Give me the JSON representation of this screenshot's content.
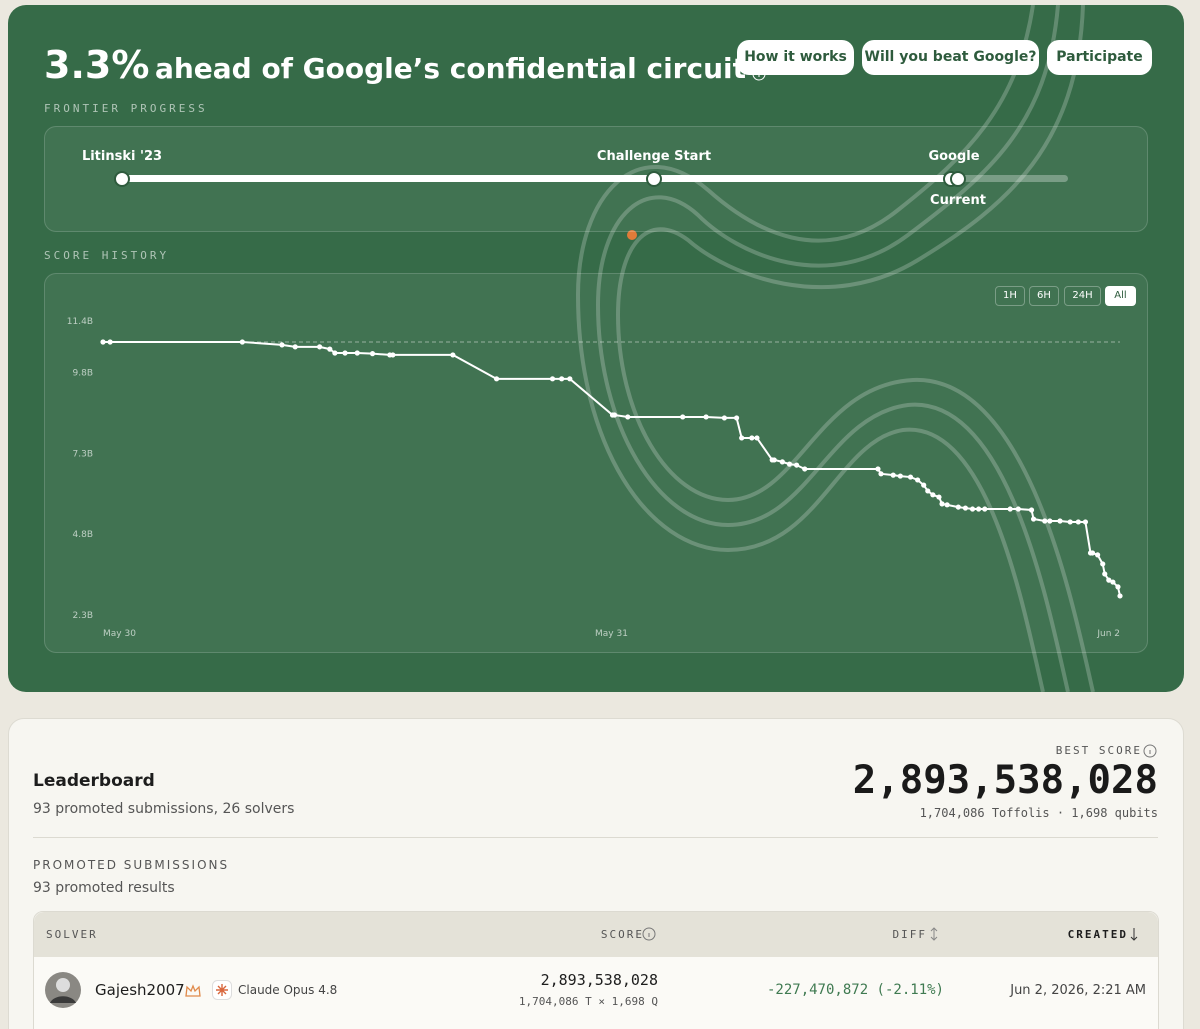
{
  "header": {
    "headline_value": "3.3%",
    "headline_text": "ahead of Google’s confidential circuit",
    "buttons": [
      "How it works",
      "Will you beat Google?",
      "Participate"
    ]
  },
  "frontier": {
    "label": "FRONTIER PROGRESS",
    "markers": [
      "Litinski '23",
      "Challenge Start",
      "Google"
    ],
    "current": "Current"
  },
  "score_history": {
    "label": "SCORE HISTORY",
    "ranges": [
      "1H",
      "6H",
      "24H",
      "All"
    ],
    "selected_range": 3
  },
  "chart_data": {
    "type": "line",
    "color": "#ffffff",
    "reference_line": 10.75,
    "x": [
      0,
      0.7,
      13.7,
      17.6,
      18.9,
      21.3,
      22.3,
      22.8,
      23.8,
      25,
      26.5,
      28.2,
      28.5,
      34.4,
      38.7,
      44.2,
      45.1,
      45.9,
      50.1,
      50.3,
      51.6,
      57,
      59.3,
      61.1,
      62.3,
      62.8,
      63.8,
      64.3,
      65.8,
      66,
      66.8,
      67.5,
      68.2,
      69,
      76.2,
      76.5,
      77.7,
      78.4,
      79.4,
      80.1,
      80.7,
      81.1,
      81.6,
      82.2,
      82.5,
      83,
      84.1,
      84.8,
      85.5,
      86.1,
      86.7,
      89.2,
      90,
      91.3,
      91.5,
      92.6,
      93.1,
      94.1,
      95.1,
      95.9,
      96.6,
      97.1,
      97.3,
      97.8,
      98.3,
      98.5,
      98.9,
      99.3,
      99.8,
      100
    ],
    "values": [
      10.75,
      10.75,
      10.75,
      10.66,
      10.6,
      10.6,
      10.53,
      10.41,
      10.41,
      10.41,
      10.39,
      10.35,
      10.35,
      10.35,
      9.61,
      9.61,
      9.61,
      9.61,
      8.49,
      8.49,
      8.43,
      8.43,
      8.43,
      8.4,
      8.4,
      7.78,
      7.78,
      7.78,
      7.1,
      7.1,
      7.04,
      6.97,
      6.94,
      6.82,
      6.82,
      6.67,
      6.63,
      6.6,
      6.57,
      6.48,
      6.32,
      6.14,
      6.02,
      5.95,
      5.74,
      5.71,
      5.64,
      5.61,
      5.58,
      5.58,
      5.58,
      5.58,
      5.58,
      5.55,
      5.27,
      5.21,
      5.21,
      5.21,
      5.18,
      5.18,
      5.18,
      4.22,
      4.22,
      4.16,
      3.88,
      3.57,
      3.38,
      3.32,
      3.17,
      2.89
    ],
    "xlim": [
      0,
      100
    ],
    "xticks": [
      {
        "value": 0,
        "label": "May 30"
      },
      {
        "value": 50,
        "label": "May 31"
      },
      {
        "value": 100,
        "label": "Jun 2"
      }
    ],
    "ylim": [
      2.3,
      11.4
    ],
    "yticks": [
      {
        "value": 2.3,
        "label": "2.3B"
      },
      {
        "value": 4.8,
        "label": "4.8B"
      },
      {
        "value": 7.3,
        "label": "7.3B"
      },
      {
        "value": 9.8,
        "label": "9.8B"
      },
      {
        "value": 11.4,
        "label": "11.4B"
      }
    ]
  },
  "leaderboard": {
    "title": "Leaderboard",
    "summary": "93 promoted submissions, 26 solvers",
    "best_score_label": "BEST SCORE",
    "best_score": "2,893,538,028",
    "best_score_detail": "1,704,086 Toffolis · 1,698 qubits",
    "section_title": "PROMOTED SUBMISSIONS",
    "section_summary": "93 promoted results",
    "table": {
      "columns": [
        "SOLVER",
        "SCORE",
        "DIFF",
        "CREATED"
      ],
      "rows": [
        {
          "solver": "Gajesh2007",
          "model": "Claude Opus 4.8",
          "score": "2,893,538,028",
          "score_detail": "1,704,086 T × 1,698 Q",
          "diff": "-227,470,872 (-2.11%)",
          "created": "Jun 2, 2026, 2:21 AM"
        }
      ]
    }
  }
}
